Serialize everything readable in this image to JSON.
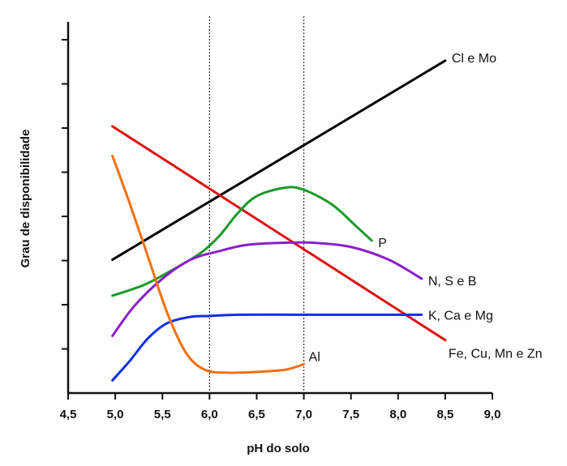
{
  "chart_data": {
    "type": "line",
    "title": "",
    "xlabel": "pH do solo",
    "ylabel": "Grau de disponibilidade",
    "xlim": [
      4.5,
      9.0
    ],
    "ylim": [
      0,
      8
    ],
    "x_ticks": [
      "4,5",
      "5,0",
      "5,5",
      "6,0",
      "6,5",
      "7,0",
      "7,5",
      "8,0",
      "8,5",
      "9,0"
    ],
    "y_tick_count": 8,
    "y_tick_labels_shown": false,
    "grid": false,
    "reference_lines_x": [
      6.0,
      7.0
    ],
    "legend": "labels at line ends",
    "series": [
      {
        "name": "Cl e Mo",
        "color": "#000000",
        "x": [
          4.97,
          8.5
        ],
        "y": [
          3.15,
          7.85
        ]
      },
      {
        "name": "Fe, Cu, Mn e Zn",
        "color": "#e01010",
        "x": [
          4.97,
          8.5
        ],
        "y": [
          6.3,
          1.25
        ]
      },
      {
        "name": "P",
        "color": "#1a9a2a",
        "x": [
          4.97,
          5.3,
          5.6,
          5.9,
          6.1,
          6.3,
          6.5,
          6.8,
          7.0,
          7.3,
          7.55,
          7.72
        ],
        "y": [
          2.3,
          2.55,
          2.9,
          3.3,
          3.7,
          4.25,
          4.65,
          4.85,
          4.8,
          4.45,
          3.95,
          3.6
        ]
      },
      {
        "name": "N, S e B",
        "color": "#8a1fc8",
        "x": [
          4.97,
          5.2,
          5.5,
          5.8,
          6.1,
          6.4,
          6.8,
          7.1,
          7.5,
          7.9,
          8.25
        ],
        "y": [
          1.35,
          2.05,
          2.7,
          3.15,
          3.35,
          3.5,
          3.55,
          3.55,
          3.45,
          3.15,
          2.7
        ]
      },
      {
        "name": "K, Ca e Mg",
        "color": "#1030e0",
        "x": [
          4.97,
          5.15,
          5.35,
          5.55,
          5.8,
          6.0,
          6.3,
          7.0,
          7.8,
          8.25
        ],
        "y": [
          0.3,
          0.75,
          1.3,
          1.65,
          1.8,
          1.82,
          1.85,
          1.85,
          1.85,
          1.85
        ]
      },
      {
        "name": "Al",
        "color": "#f07010",
        "x": [
          4.97,
          5.15,
          5.35,
          5.55,
          5.75,
          5.95,
          6.2,
          6.5,
          6.8,
          7.0
        ],
        "y": [
          5.6,
          4.5,
          3.2,
          1.9,
          0.95,
          0.55,
          0.48,
          0.5,
          0.55,
          0.68
        ]
      }
    ]
  }
}
